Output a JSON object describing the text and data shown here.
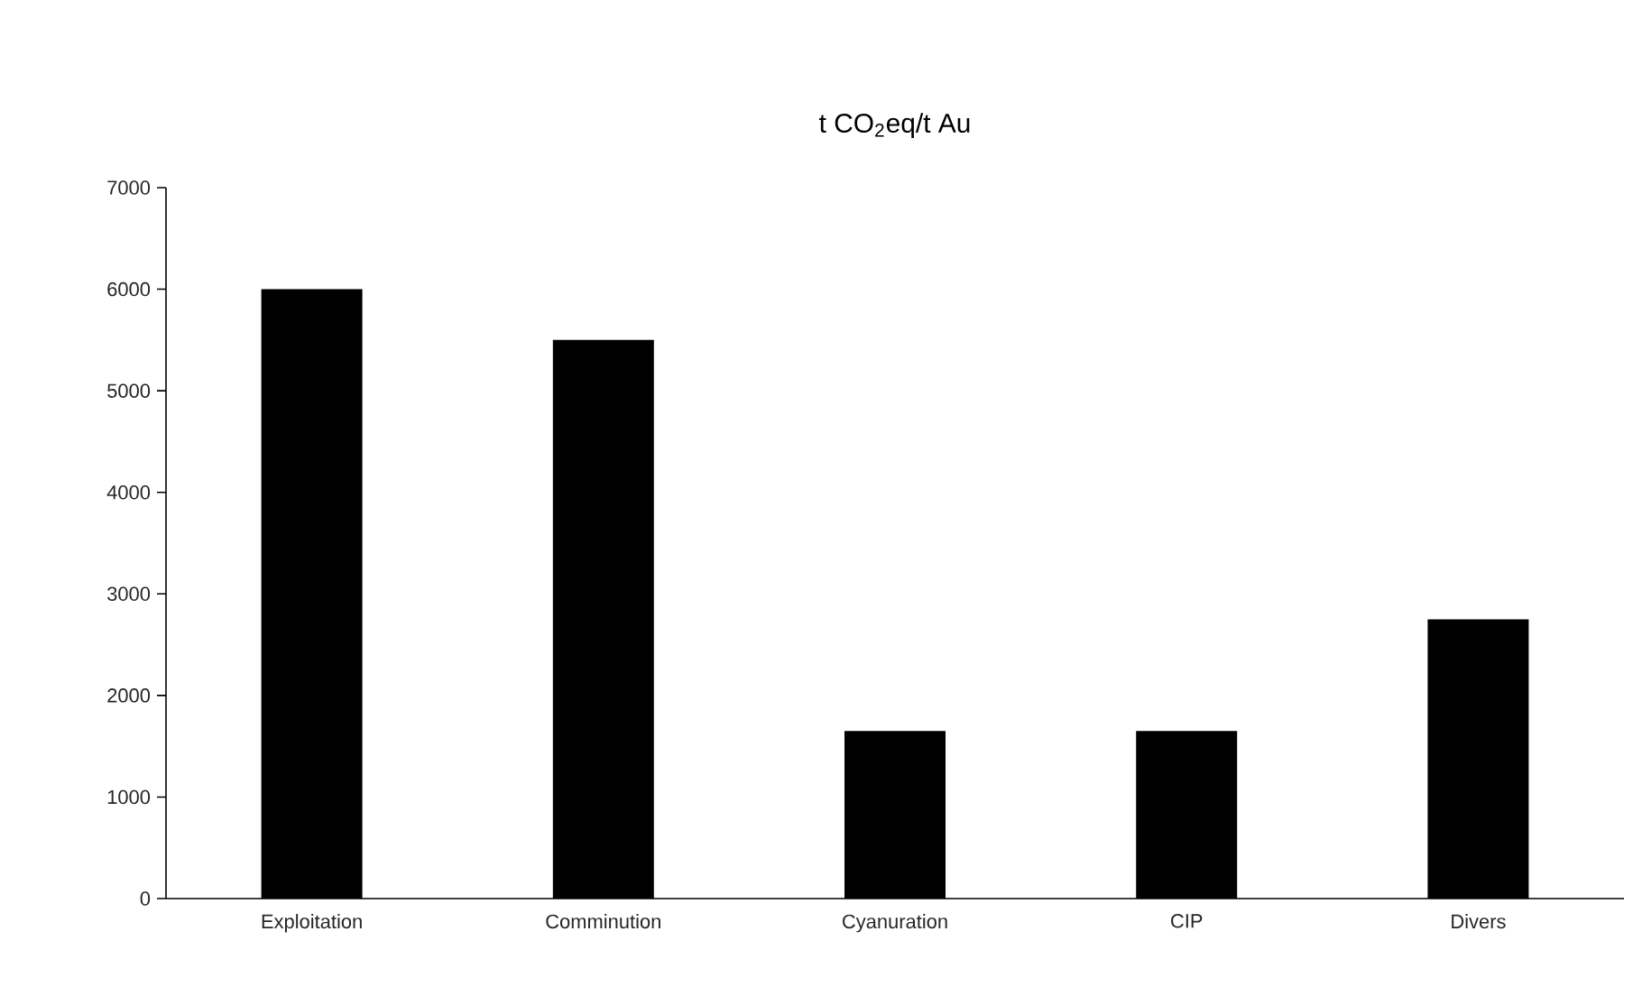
{
  "chart_data": {
    "type": "bar",
    "title": "t CO$_{2}$eq/t Au",
    "categories": [
      "Exploitation",
      "Comminution",
      "Cyanuration",
      "CIP",
      "Divers"
    ],
    "values": [
      6000,
      5500,
      1650,
      1650,
      2750
    ],
    "color": "#000000",
    "ylim": [
      0,
      7000
    ],
    "yticks": [
      0,
      1000,
      2000,
      3000,
      4000,
      5000,
      6000,
      7000
    ],
    "grid": false
  }
}
